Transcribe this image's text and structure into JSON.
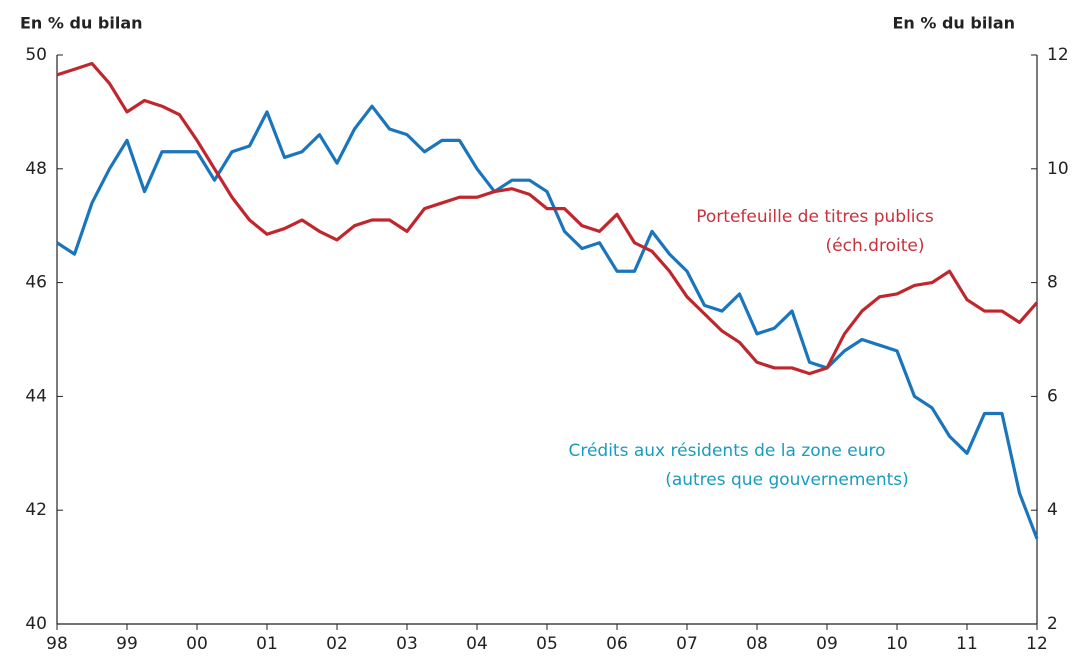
{
  "chart_data": {
    "type": "line",
    "ylabel": "En % du bilan",
    "y2label": "En % du bilan",
    "xlim": [
      1998,
      2012
    ],
    "xticks": [
      {
        "value": 1998,
        "label": "98"
      },
      {
        "value": 1999,
        "label": "99"
      },
      {
        "value": 2000,
        "label": "00"
      },
      {
        "value": 2001,
        "label": "01"
      },
      {
        "value": 2002,
        "label": "02"
      },
      {
        "value": 2003,
        "label": "03"
      },
      {
        "value": 2004,
        "label": "04"
      },
      {
        "value": 2005,
        "label": "05"
      },
      {
        "value": 2006,
        "label": "06"
      },
      {
        "value": 2007,
        "label": "07"
      },
      {
        "value": 2008,
        "label": "08"
      },
      {
        "value": 2009,
        "label": "09"
      },
      {
        "value": 2010,
        "label": "10"
      },
      {
        "value": 2011,
        "label": "11"
      },
      {
        "value": 2012,
        "label": "12"
      }
    ],
    "ylim": [
      40,
      50
    ],
    "yticks": [
      40,
      42,
      44,
      46,
      48,
      50
    ],
    "y2lim": [
      2,
      12
    ],
    "y2ticks": [
      2,
      4,
      6,
      8,
      10,
      12
    ],
    "x": [
      1998,
      1998.25,
      1998.5,
      1998.75,
      1999,
      1999.25,
      1999.5,
      1999.75,
      2000,
      2000.25,
      2000.5,
      2000.75,
      2001,
      2001.25,
      2001.5,
      2001.75,
      2002,
      2002.25,
      2002.5,
      2002.75,
      2003,
      2003.25,
      2003.5,
      2003.75,
      2004,
      2004.25,
      2004.5,
      2004.75,
      2005,
      2005.25,
      2005.5,
      2005.75,
      2006,
      2006.25,
      2006.5,
      2006.75,
      2007,
      2007.25,
      2007.5,
      2007.75,
      2008,
      2008.25,
      2008.5,
      2008.75,
      2009,
      2009.25,
      2009.5,
      2009.75,
      2010,
      2010.25,
      2010.5,
      2010.75,
      2011,
      2011.25,
      2011.5,
      2011.75,
      2012
    ],
    "series": [
      {
        "label_lines": [
          "Crédits aux résidents de la zone euro",
          "(autres que gouvernements)"
        ],
        "color": "#1a75bc",
        "label_color": "#1a9bc0",
        "axis": "y",
        "values": [
          46.7,
          46.5,
          47.4,
          48.0,
          48.5,
          47.6,
          48.3,
          48.3,
          48.3,
          47.8,
          48.3,
          48.4,
          49.0,
          48.2,
          48.3,
          48.6,
          48.1,
          48.7,
          49.1,
          48.7,
          48.6,
          48.3,
          48.5,
          48.5,
          48.0,
          47.6,
          47.8,
          47.8,
          47.6,
          46.9,
          46.6,
          46.7,
          46.2,
          46.2,
          46.9,
          46.5,
          46.2,
          45.6,
          45.5,
          45.8,
          45.1,
          45.2,
          45.5,
          44.6,
          44.5,
          44.8,
          45.0,
          44.9,
          44.8,
          44.0,
          43.8,
          43.3,
          43.0,
          43.7,
          43.7,
          42.3,
          41.5
        ]
      },
      {
        "label_lines": [
          "Portefeuille de titres publics",
          "(éch.droite)"
        ],
        "color": "#c0272d",
        "label_color": "#c8323a",
        "axis": "y2",
        "values": [
          11.65,
          11.75,
          11.85,
          11.5,
          11.0,
          11.2,
          11.1,
          10.95,
          10.5,
          10.0,
          9.5,
          9.1,
          8.85,
          8.95,
          9.1,
          8.9,
          8.75,
          9.0,
          9.1,
          9.1,
          8.9,
          9.3,
          9.4,
          9.5,
          9.5,
          9.6,
          9.65,
          9.55,
          9.3,
          9.3,
          9.0,
          8.9,
          9.2,
          8.7,
          8.55,
          8.2,
          7.75,
          7.45,
          7.15,
          6.95,
          6.6,
          6.5,
          6.5,
          6.4,
          6.5,
          7.1,
          7.5,
          7.75,
          7.8,
          7.95,
          8.0,
          8.2,
          7.7,
          7.5,
          7.5,
          7.3,
          7.65
        ]
      }
    ]
  }
}
